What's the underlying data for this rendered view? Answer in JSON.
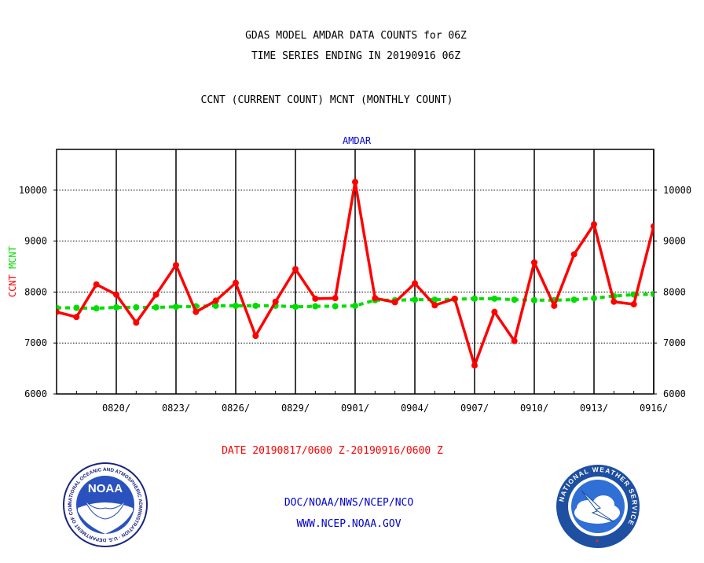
{
  "header": {
    "line1": "GDAS MODEL AMDAR DATA COUNTS for 06Z",
    "line2": "TIME SERIES ENDING IN 20190916 06Z",
    "line3": "CCNT (CURRENT COUNT) MCNT (MONTHLY COUNT)"
  },
  "chart_data": {
    "type": "line",
    "title": "AMDAR",
    "ylabel_ccnt": "CCNT",
    "ylabel_mcnt": "MCNT",
    "ylim": [
      6000,
      10800
    ],
    "yticks": [
      6000,
      7000,
      8000,
      9000,
      10000
    ],
    "ytick_labels": [
      "6000",
      "7000",
      "8000",
      "9000",
      "10000"
    ],
    "xlim": [
      0,
      30
    ],
    "xticks": [
      3,
      6,
      9,
      12,
      15,
      18,
      21,
      24,
      27,
      30
    ],
    "xtick_labels": [
      "0820/",
      "0823/",
      "0826/",
      "0829/",
      "0901/",
      "0904/",
      "0907/",
      "0910/",
      "0913/",
      "0916/"
    ],
    "grid": true,
    "colors": {
      "ccnt": "#ff0000",
      "mcnt": "#00dd00",
      "title": "#0000cc"
    },
    "x": [
      0,
      1,
      2,
      3,
      4,
      5,
      6,
      7,
      8,
      9,
      10,
      11,
      12,
      13,
      14,
      15,
      16,
      17,
      18,
      19,
      20,
      21,
      22,
      23,
      24,
      25,
      26,
      27,
      28,
      29,
      30
    ],
    "series": [
      {
        "name": "CCNT",
        "color": "#ff0000",
        "values": [
          7610,
          7510,
          8150,
          7950,
          7400,
          7950,
          8530,
          7610,
          7830,
          8180,
          7140,
          7810,
          8450,
          7870,
          7880,
          10160,
          7880,
          7800,
          8170,
          7740,
          7870,
          6560,
          7610,
          7040,
          8580,
          7730,
          8740,
          9330,
          7810,
          7760,
          9290
        ]
      },
      {
        "name": "MCNT",
        "color": "#00dd00",
        "values": [
          7690,
          7690,
          7680,
          7700,
          7700,
          7700,
          7710,
          7720,
          7730,
          7730,
          7730,
          7730,
          7710,
          7720,
          7720,
          7730,
          7840,
          7840,
          7850,
          7850,
          7860,
          7870,
          7870,
          7850,
          7840,
          7840,
          7850,
          7880,
          7920,
          7950,
          7960
        ]
      }
    ]
  },
  "footer": {
    "date_range": "DATE 20190817/0600 Z-20190916/0600 Z",
    "credit_line1": "DOC/NOAA/NWS/NCEP/NCO",
    "credit_line2": "WWW.NCEP.NOAA.GOV"
  },
  "logos": {
    "noaa_text": "NOAA",
    "noaa_ring": "NATIONAL OCEANIC AND ATMOSPHERIC ADMINISTRATION · U.S. DEPARTMENT OF COMMERCE ·",
    "nws_ring": "NATIONAL WEATHER SERVICE"
  }
}
